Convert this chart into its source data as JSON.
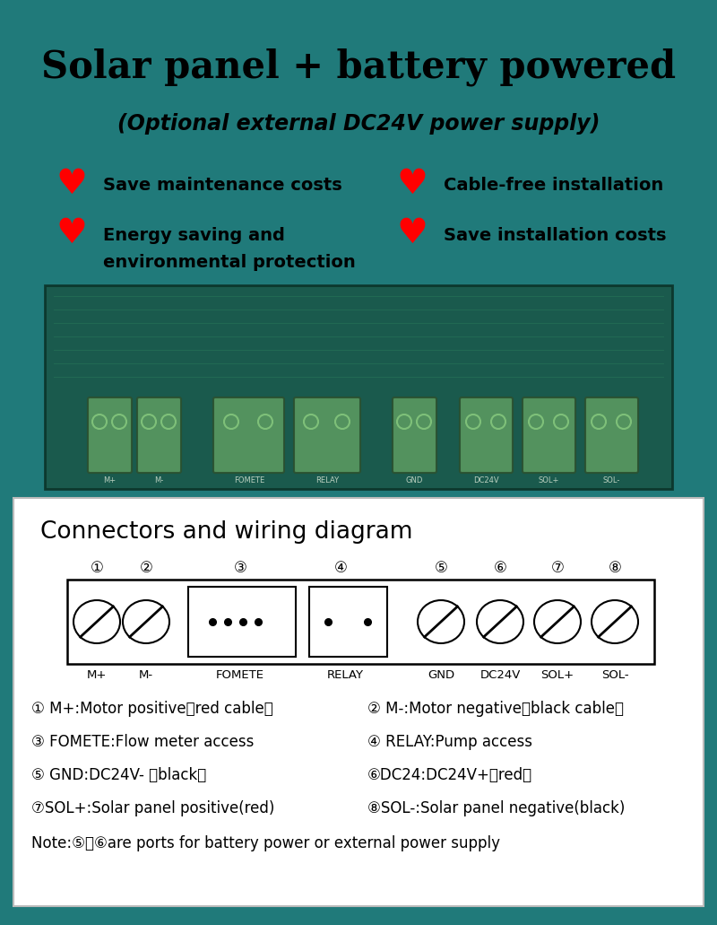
{
  "bg_color": "#207a7a",
  "white_panel_color": "#ffffff",
  "title_line1": "Solar panel + battery powered",
  "title_line2": "(Optional external DC24V power supply)",
  "features": [
    {
      "text": "Save maintenance costs",
      "col": 0
    },
    {
      "text": "Cable-free installation",
      "col": 1
    },
    {
      "text": "Energy saving and\nenvironmental protection",
      "col": 0
    },
    {
      "text": "Save installation costs",
      "col": 1
    }
  ],
  "diagram_title": "Connectors and wiring diagram",
  "connector_labels": [
    "M+",
    "M-",
    "FOMETE",
    "RELAY",
    "GND",
    "DC24V",
    "SOL+",
    "SOL-"
  ],
  "connector_numbers": [
    "①",
    "②",
    "③",
    "④",
    "⑤",
    "⑥",
    "⑦",
    "⑧"
  ],
  "desc_left": [
    "① M+:Motor positive（red cable）",
    "③ FOMETE:Flow meter access",
    "⑤ GND:DC24V- （black）",
    "⑦SOL+:Solar panel positive(red)"
  ],
  "desc_right": [
    "② M-:Motor negative（black cable）",
    "④ RELAY:Pump access",
    "⑥DC24:DC24V+（red）",
    "⑧SOL-:Solar panel negative(black)"
  ],
  "note": "Note:⑤、⑥are ports for battery power or external power supply",
  "pcb_color": "#2e6e5e",
  "pcb_edge": "#1a4030",
  "connector_block_color": "#5a9060",
  "teal_color": "#207a7a"
}
